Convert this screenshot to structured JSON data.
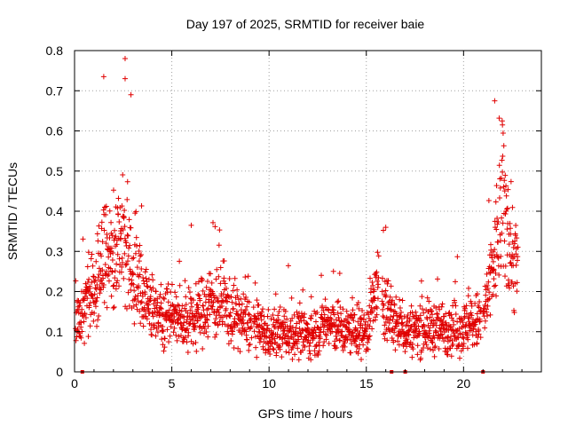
{
  "chart_data": {
    "type": "scatter",
    "title": "Day 197 of 2025, SRMTID for receiver baie",
    "xlabel": "GPS time / hours",
    "ylabel": "SRMTID / TECUs",
    "xlim": [
      0,
      24
    ],
    "ylim": [
      0,
      0.8
    ],
    "xticks": [
      0,
      5,
      10,
      15,
      20
    ],
    "yticks": [
      0,
      0.1,
      0.2,
      0.3,
      0.4,
      0.5,
      0.6,
      0.7,
      0.8
    ],
    "xtick_labels": [
      "0",
      "5",
      "10",
      "15",
      "20"
    ],
    "ytick_labels": [
      "0",
      "0.1",
      "0.2",
      "0.3",
      "0.4",
      "0.5",
      "0.6",
      "0.7",
      "0.8"
    ],
    "grid": true,
    "marker": "plus",
    "color": "#e00000",
    "envelope": {
      "description": "approximate per-hour median level of the scattered SRMTID samples",
      "x": [
        0,
        0.5,
        1,
        1.5,
        2,
        2.5,
        3,
        3.5,
        4,
        5,
        6,
        7,
        8,
        9,
        10,
        11,
        12,
        13,
        14,
        15,
        15.5,
        16,
        16.5,
        17,
        18,
        19,
        20,
        21,
        21.5,
        22,
        22.5,
        22.8
      ],
      "y": [
        0.12,
        0.16,
        0.2,
        0.3,
        0.28,
        0.35,
        0.25,
        0.2,
        0.16,
        0.14,
        0.12,
        0.18,
        0.15,
        0.12,
        0.09,
        0.1,
        0.09,
        0.12,
        0.1,
        0.1,
        0.2,
        0.16,
        0.12,
        0.1,
        0.11,
        0.11,
        0.11,
        0.13,
        0.25,
        0.42,
        0.3,
        0.25
      ]
    },
    "notable_points": [
      {
        "x": 1.5,
        "y": 0.735
      },
      {
        "x": 2.6,
        "y": 0.78
      },
      {
        "x": 2.6,
        "y": 0.73
      },
      {
        "x": 2.9,
        "y": 0.69
      },
      {
        "x": 21.6,
        "y": 0.675
      },
      {
        "x": 22.0,
        "y": 0.615
      },
      {
        "x": 6.0,
        "y": 0.365
      },
      {
        "x": 16.0,
        "y": 0.36
      }
    ],
    "zero_markers_x": [
      0.4,
      16.3,
      17.0,
      21.0
    ]
  }
}
